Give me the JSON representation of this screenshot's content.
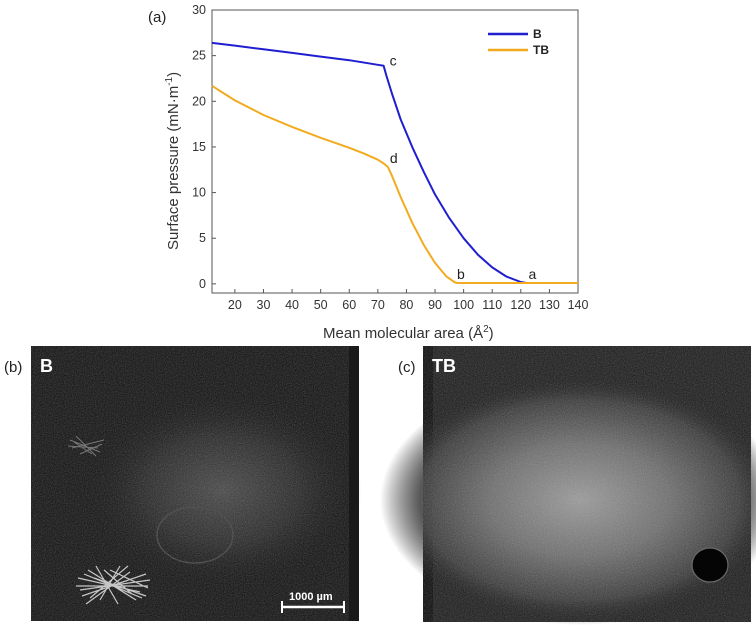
{
  "panels": {
    "a": "(a)",
    "b": "(b)",
    "c": "(c)"
  },
  "chart_data": {
    "type": "line",
    "xlabel": "Mean molecular area (Å",
    "xlabel_sup": "2",
    "xlabel_end": ")",
    "ylabel": "Surface pressure (mN·m",
    "ylabel_sup": "-1",
    "ylabel_end": ")",
    "xlim": [
      12,
      140
    ],
    "ylim": [
      -1,
      30
    ],
    "xticks": [
      20,
      30,
      40,
      50,
      60,
      70,
      80,
      90,
      100,
      110,
      120,
      130,
      140
    ],
    "yticks": [
      0,
      5,
      10,
      15,
      20,
      25,
      30
    ],
    "legend_position": "top-right",
    "series": [
      {
        "name": "B",
        "color": "#1f1fd0",
        "x": [
          12,
          20,
          30,
          40,
          50,
          60,
          70,
          72,
          73,
          75,
          78,
          82,
          86,
          90,
          95,
          100,
          105,
          110,
          115,
          120,
          122,
          125,
          130,
          135,
          140
        ],
        "y": [
          26.4,
          26.1,
          25.7,
          25.3,
          24.9,
          24.5,
          24.0,
          23.9,
          22.8,
          20.8,
          18.0,
          15.0,
          12.3,
          9.8,
          7.2,
          5.0,
          3.2,
          1.8,
          0.8,
          0.2,
          0.1,
          0.1,
          0.1,
          0.1,
          0.1
        ]
      },
      {
        "name": "TB",
        "color": "#f2ab1f",
        "x": [
          12,
          20,
          30,
          40,
          50,
          60,
          65,
          70,
          72,
          73.5,
          75,
          78,
          82,
          86,
          90,
          94,
          97,
          98,
          105,
          110,
          120,
          130,
          140
        ],
        "y": [
          21.7,
          20.1,
          18.5,
          17.2,
          16.0,
          14.9,
          14.3,
          13.6,
          13.2,
          12.8,
          11.8,
          9.5,
          6.7,
          4.3,
          2.3,
          0.8,
          0.15,
          0.1,
          0.1,
          0.1,
          0.1,
          0.1,
          0.1
        ]
      }
    ],
    "annotations": [
      {
        "text": "c",
        "x": 72,
        "y": 23.9
      },
      {
        "text": "d",
        "x": 73.5,
        "y": 12.8
      },
      {
        "text": "b",
        "x": 97,
        "y": 0.1
      },
      {
        "text": "a",
        "x": 122,
        "y": 0.1
      }
    ]
  },
  "images": {
    "b": {
      "title": "B",
      "scale_bar": "1000 µm"
    },
    "c": {
      "title": "TB"
    }
  }
}
